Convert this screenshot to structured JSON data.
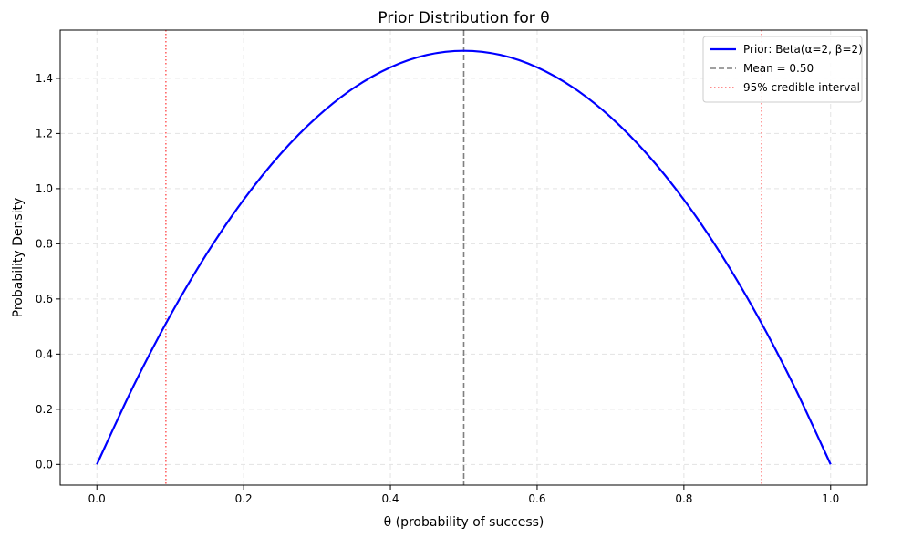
{
  "chart_data": {
    "type": "line",
    "title": "Prior Distribution for θ",
    "xlabel": "θ (probability of success)",
    "ylabel": "Probability Density",
    "xlim": [
      -0.05,
      1.05
    ],
    "ylim": [
      -0.075,
      1.575
    ],
    "xticks": [
      0.0,
      0.2,
      0.4,
      0.6,
      0.8,
      1.0
    ],
    "xtick_labels": [
      "0.0",
      "0.2",
      "0.4",
      "0.6",
      "0.8",
      "1.0"
    ],
    "yticks": [
      0.0,
      0.2,
      0.4,
      0.6,
      0.8,
      1.0,
      1.2,
      1.4
    ],
    "ytick_labels": [
      "0.0",
      "0.2",
      "0.4",
      "0.6",
      "0.8",
      "1.0",
      "1.2",
      "1.4"
    ],
    "grid": true,
    "legend_position": "top-right",
    "series": [
      {
        "name": "Prior: Beta(α=2, β=2)",
        "kind": "curve",
        "color": "#0000ff",
        "style": "solid",
        "x": [
          0.0,
          0.05,
          0.1,
          0.15,
          0.2,
          0.25,
          0.3,
          0.35,
          0.4,
          0.45,
          0.5,
          0.55,
          0.6,
          0.65,
          0.7,
          0.75,
          0.8,
          0.85,
          0.9,
          0.95,
          1.0
        ],
        "y": [
          0.0,
          0.285,
          0.54,
          0.765,
          0.96,
          1.125,
          1.26,
          1.365,
          1.44,
          1.485,
          1.5,
          1.485,
          1.44,
          1.365,
          1.26,
          1.125,
          0.96,
          0.765,
          0.54,
          0.285,
          0.0
        ]
      },
      {
        "name": "Mean = 0.50",
        "kind": "vline",
        "x": 0.5,
        "color": "#808080",
        "style": "dashed"
      },
      {
        "name": "95% credible interval",
        "kind": "vlines",
        "x": [
          0.094,
          0.906
        ],
        "color": "#ff6666",
        "style": "dotted"
      }
    ]
  }
}
